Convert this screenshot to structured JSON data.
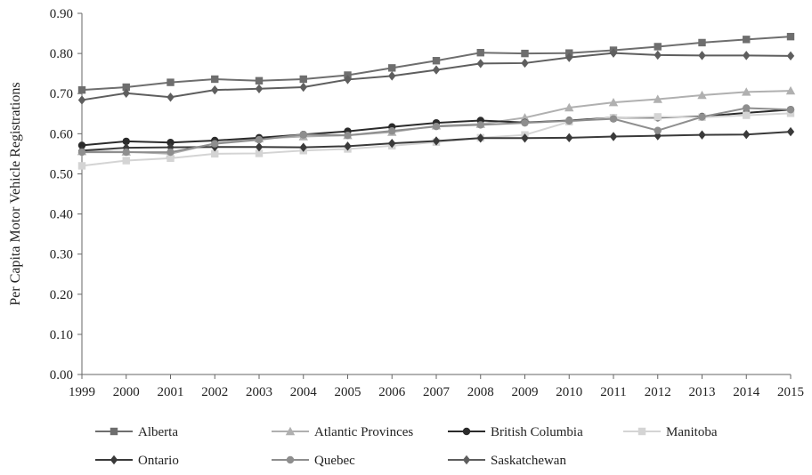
{
  "chart_data": {
    "type": "line",
    "title": "",
    "xlabel": "",
    "ylabel": "Per Capita Motor Vehicle Registrations",
    "ylim": [
      0,
      0.9
    ],
    "y_ticks": [
      "0.00",
      "0.10",
      "0.20",
      "0.30",
      "0.40",
      "0.50",
      "0.60",
      "0.70",
      "0.80",
      "0.90"
    ],
    "grid": false,
    "legend_position": "bottom",
    "categories": [
      "1999",
      "2000",
      "2001",
      "2002",
      "2003",
      "2004",
      "2005",
      "2006",
      "2007",
      "2008",
      "2009",
      "2010",
      "2011",
      "2012",
      "2013",
      "2014",
      "2015"
    ],
    "series": [
      {
        "name": "Alberta",
        "color": "#6e6e6e",
        "marker": "square",
        "values": [
          0.709,
          0.716,
          0.728,
          0.736,
          0.732,
          0.736,
          0.746,
          0.764,
          0.782,
          0.802,
          0.8,
          0.801,
          0.808,
          0.817,
          0.827,
          0.835,
          0.842
        ]
      },
      {
        "name": "Atlantic Provinces",
        "color": "#b0b0b0",
        "marker": "triangle",
        "values": [
          0.556,
          0.555,
          0.55,
          0.576,
          0.588,
          0.593,
          0.596,
          0.604,
          0.62,
          0.624,
          0.64,
          0.665,
          0.678,
          0.686,
          0.696,
          0.704,
          0.707
        ]
      },
      {
        "name": "British Columbia",
        "color": "#2b2b2b",
        "marker": "circle",
        "values": [
          0.571,
          0.581,
          0.578,
          0.583,
          0.59,
          0.598,
          0.606,
          0.617,
          0.627,
          0.633,
          0.628,
          0.633,
          0.64,
          0.64,
          0.643,
          0.652,
          0.66
        ]
      },
      {
        "name": "Manitoba",
        "color": "#d4d4d4",
        "marker": "square",
        "values": [
          0.52,
          0.533,
          0.539,
          0.55,
          0.551,
          0.558,
          0.562,
          0.57,
          0.579,
          0.59,
          0.597,
          0.63,
          0.64,
          0.642,
          0.641,
          0.646,
          0.651
        ]
      },
      {
        "name": "Ontario",
        "color": "#3a3a3a",
        "marker": "diamond",
        "values": [
          0.558,
          0.565,
          0.566,
          0.567,
          0.567,
          0.566,
          0.569,
          0.576,
          0.582,
          0.589,
          0.589,
          0.59,
          0.593,
          0.595,
          0.597,
          0.598,
          0.605
        ]
      },
      {
        "name": "Quebec",
        "color": "#8e8e8e",
        "marker": "circle",
        "values": [
          0.554,
          0.554,
          0.554,
          0.575,
          0.585,
          0.598,
          0.596,
          0.607,
          0.618,
          0.622,
          0.627,
          0.632,
          0.637,
          0.608,
          0.642,
          0.664,
          0.66
        ]
      },
      {
        "name": "Saskatchewan",
        "color": "#5e5e5e",
        "marker": "diamond",
        "values": [
          0.684,
          0.701,
          0.691,
          0.709,
          0.712,
          0.716,
          0.735,
          0.744,
          0.759,
          0.775,
          0.776,
          0.79,
          0.801,
          0.796,
          0.795,
          0.795,
          0.794
        ]
      }
    ]
  }
}
